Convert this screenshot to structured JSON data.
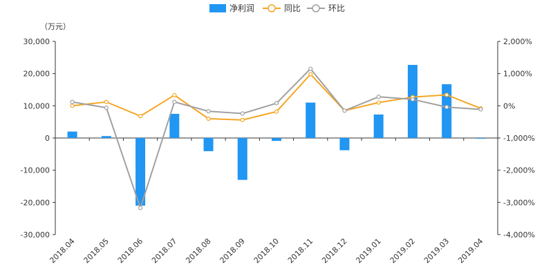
{
  "chart_data": {
    "type": "bar",
    "categories": [
      "2018.04",
      "2018.05",
      "2018.06",
      "2018.07",
      "2018.08",
      "2018.09",
      "2018.10",
      "2018.11",
      "2018.12",
      "2019.01",
      "2019.02",
      "2019.03",
      "2019.04"
    ],
    "unit_label": "（万元）",
    "left_axis": {
      "ticks": [
        30000,
        20000,
        10000,
        0,
        -10000,
        -20000,
        -30000
      ],
      "tick_labels": [
        "30,000",
        "20,000",
        "10,000",
        "0",
        "-10,000",
        "-20,000",
        "-30,000"
      ],
      "ylim": [
        -30000,
        30000
      ]
    },
    "right_axis": {
      "ticks": [
        2000,
        1000,
        0,
        -1000,
        -2000,
        -3000,
        -4000
      ],
      "tick_labels": [
        "2,000%",
        "1,000%",
        "0%",
        "-1,000%",
        "-2,000%",
        "-3,000%",
        "-4,000%"
      ],
      "ylim": [
        -4000,
        2000
      ]
    },
    "series": [
      {
        "name": "净利润",
        "type": "bar",
        "axis": "left",
        "color": "#2196f3",
        "values": [
          2000,
          600,
          -21000,
          7500,
          -4100,
          -13000,
          -900,
          11000,
          -3800,
          7300,
          22700,
          16700,
          -100
        ]
      },
      {
        "name": "同比",
        "type": "line",
        "axis": "right",
        "color": "#f5a623",
        "values": [
          0,
          120,
          -320,
          330,
          -400,
          -440,
          -180,
          980,
          -150,
          100,
          270,
          340,
          -80
        ]
      },
      {
        "name": "环比",
        "type": "line",
        "axis": "right",
        "color": "#a0a0a0",
        "values": [
          120,
          -60,
          -3170,
          120,
          -170,
          -240,
          80,
          1150,
          -150,
          280,
          200,
          -40,
          -110
        ]
      }
    ],
    "legend": {
      "placement": "top-center",
      "items": [
        "净利润",
        "同比",
        "环比"
      ]
    },
    "grid": false
  }
}
